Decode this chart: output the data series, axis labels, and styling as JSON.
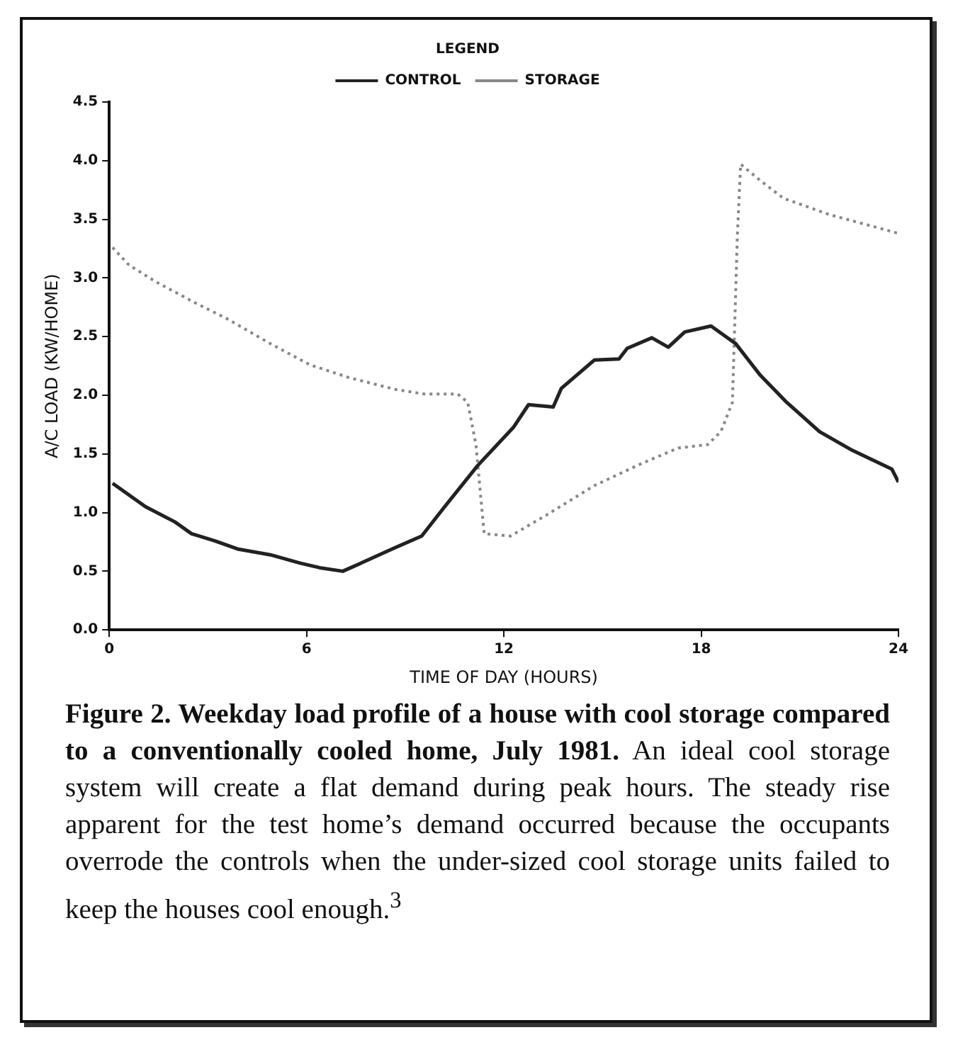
{
  "chart_data": {
    "type": "line",
    "title": "Figure 2. Weekday load profile of a house with cool storage compared to a conventionally cooled home, July 1981.",
    "annotations": [
      "An ideal cool storage system will create a flat demand during peak hours. The steady rise apparent for the test home’s demand occurred because the occupants overrode the controls when the under-sized cool storage units failed to keep the houses cool enough.$^{3}$"
    ],
    "xlabel": "TIME OF DAY (HOURS)",
    "ylabel": "A/C LOAD (KW/HOME)",
    "legend_title": "LEGEND",
    "legend": "top",
    "grid": false,
    "marker": "none",
    "xlim": [
      0,
      24
    ],
    "xticks": [
      0,
      6,
      12,
      18,
      24
    ],
    "ylim": [
      0,
      4.5
    ],
    "yticks": [
      {
        "value": 0,
        "label": "0.0"
      },
      0.5,
      {
        "value": 1,
        "label": "1.0"
      },
      1.5,
      {
        "value": 2,
        "label": "2.0"
      },
      2.5,
      {
        "value": 3,
        "label": "3.0"
      },
      3.5,
      {
        "value": 4,
        "label": "4.0"
      },
      4.5
    ],
    "series": [
      {
        "name": "CONTROL",
        "color": "#222222",
        "line_style": "solid",
        "x": [
          0.1,
          1.1,
          2,
          2.5,
          3.2,
          3.9,
          4.9,
          5.8,
          6.4,
          7.1,
          7.9,
          8.6,
          9.5,
          10.2,
          11.2,
          12.3,
          12.75,
          13.5,
          13.75,
          14.75,
          15.5,
          15.75,
          16.5,
          17,
          17.5,
          18.3,
          19.05,
          19.8,
          20.6,
          21.6,
          22.6,
          23.8,
          24
        ],
        "values": [
          1.25,
          1.05,
          0.92,
          0.82,
          0.76,
          0.69,
          0.64,
          0.57,
          0.53,
          0.5,
          0.6,
          0.69,
          0.8,
          1.05,
          1.4,
          1.73,
          1.92,
          1.9,
          2.06,
          2.3,
          2.31,
          2.4,
          2.49,
          2.41,
          2.54,
          2.59,
          2.44,
          2.17,
          1.94,
          1.69,
          1.53,
          1.37,
          1.26
        ]
      },
      {
        "name": "STORAGE",
        "color": "#888888",
        "line_style": "dotted",
        "x": [
          0.1,
          0.6,
          1.4,
          2.6,
          3.6,
          4.9,
          6.1,
          7.3,
          8.7,
          9.6,
          10.6,
          10.9,
          11.15,
          11.4,
          12.2,
          13.3,
          14.75,
          16.2,
          17.3,
          18.2,
          18.6,
          18.95,
          19.1,
          19.2,
          19.8,
          20.5,
          21.9,
          23.35,
          24
        ],
        "values": [
          3.26,
          3.11,
          2.97,
          2.79,
          2.65,
          2.44,
          2.26,
          2.15,
          2.05,
          2.01,
          2.01,
          1.94,
          1.58,
          0.82,
          0.8,
          0.98,
          1.23,
          1.42,
          1.55,
          1.58,
          1.69,
          1.94,
          3.36,
          3.97,
          3.83,
          3.68,
          3.54,
          3.43,
          3.38
        ]
      }
    ]
  }
}
